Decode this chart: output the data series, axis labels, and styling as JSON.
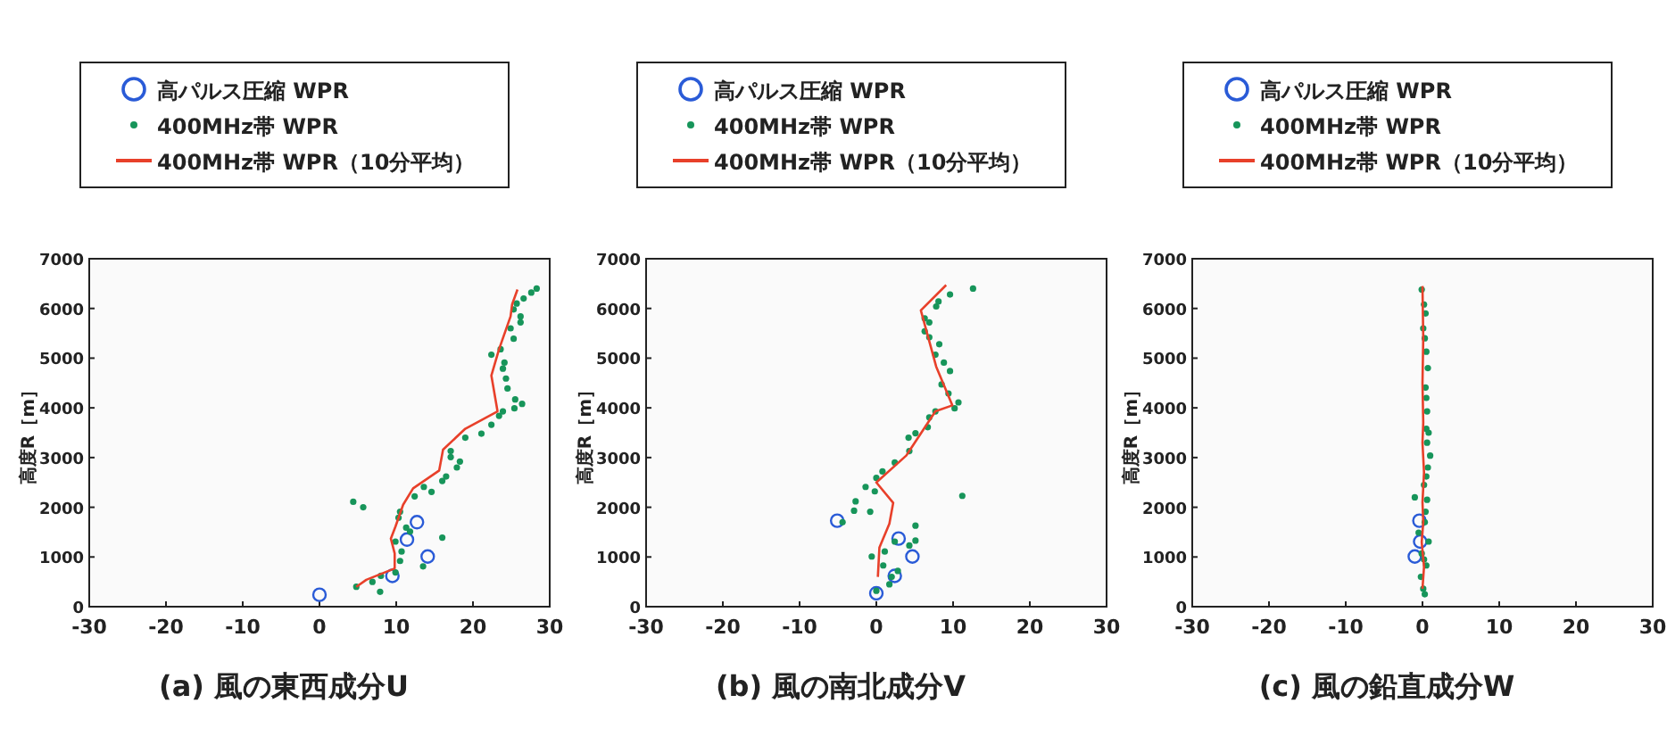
{
  "chart_data": [
    {
      "type": "scatter",
      "title": "(a) 風の東西成分U",
      "ylabel": "高度R［m］",
      "xlim": [
        -30,
        30
      ],
      "xticks": [
        -30,
        -20,
        -10,
        0,
        10,
        20,
        30
      ],
      "ylim": [
        0,
        7000
      ],
      "yticks": [
        0,
        1000,
        2000,
        3000,
        4000,
        5000,
        6000,
        7000
      ],
      "grid": false,
      "legend": "top",
      "series": [
        {
          "name": "高パルス圧縮 WPR",
          "type": "scatter",
          "marker": "circle",
          "color": "#2a5bd7",
          "x": [
            0,
            11.4,
            12.7,
            14.1,
            9.5
          ],
          "values": [
            240,
            1350,
            1700,
            1010,
            620
          ]
        },
        {
          "name": "400MHz帯 WPR",
          "type": "scatter",
          "marker": "circle",
          "color": "#17955a",
          "x": [
            4.8,
            6.9,
            8.0,
            7.9,
            9.9,
            10.5,
            10.7,
            9.9,
            11.3,
            11.8,
            10.3,
            10.5,
            16.0,
            13.5,
            4.4,
            5.7,
            12.4,
            14.6,
            13.6,
            16.5,
            16.0,
            17.9,
            18.3,
            17.1,
            17.1,
            19.0,
            21.1,
            22.4,
            23.4,
            23.9,
            25.4,
            26.4,
            25.5,
            24.5,
            24.3,
            23.9,
            24.1,
            23.6,
            22.4,
            25.3,
            24.9,
            26.2,
            26.2,
            25.3,
            25.7,
            26.6,
            27.6,
            28.3
          ],
          "values": [
            400,
            500,
            620,
            300,
            690,
            920,
            1110,
            1310,
            1590,
            1510,
            1790,
            1910,
            1390,
            810,
            2110,
            2000,
            2220,
            2310,
            2410,
            2620,
            2530,
            2800,
            2920,
            3130,
            3010,
            3400,
            3480,
            3660,
            3840,
            3930,
            3990,
            4080,
            4170,
            4390,
            4590,
            4790,
            4910,
            5180,
            5070,
            5390,
            5600,
            5720,
            5840,
            5980,
            6100,
            6200,
            6320,
            6400
          ]
        },
        {
          "name": "400MHz帯 WPR（10分平均）",
          "type": "line",
          "color": "#e8402a",
          "x": [
            4.8,
            6.1,
            9.8,
            9.8,
            9.3,
            9.9,
            10.9,
            12.2,
            15.6,
            16.1,
            19.0,
            23.2,
            22.4,
            23.4,
            24.9,
            25.1,
            25.8
          ],
          "values": [
            400,
            540,
            770,
            1070,
            1370,
            1610,
            2050,
            2380,
            2740,
            3160,
            3580,
            3930,
            4650,
            5180,
            5840,
            6080,
            6380
          ]
        }
      ]
    },
    {
      "type": "scatter",
      "title": "(b) 風の南北成分V",
      "ylabel": "高度R［m］",
      "xlim": [
        -30,
        30
      ],
      "xticks": [
        -30,
        -20,
        -10,
        0,
        10,
        20,
        30
      ],
      "ylim": [
        0,
        7000
      ],
      "yticks": [
        0,
        1000,
        2000,
        3000,
        4000,
        5000,
        6000,
        7000
      ],
      "grid": false,
      "legend": "top",
      "series": [
        {
          "name": "高パルス圧縮 WPR",
          "type": "scatter",
          "marker": "circle",
          "color": "#2a5bd7",
          "x": [
            0,
            -5.1,
            2.9,
            4.7,
            2.4
          ],
          "values": [
            270,
            1730,
            1370,
            1010,
            620
          ]
        },
        {
          "name": "400MHz帯 WPR",
          "type": "scatter",
          "marker": "circle",
          "color": "#17955a",
          "x": [
            0,
            1.7,
            2.8,
            0.9,
            2.0,
            -0.6,
            1.1,
            2.4,
            4.3,
            5.1,
            5.1,
            -4.4,
            -2.9,
            -0.8,
            -2.7,
            -1.4,
            -0.2,
            0,
            0.8,
            2.4,
            4.3,
            4.2,
            5.1,
            6.7,
            6.9,
            7.7,
            10.2,
            10.7,
            9.4,
            8.5,
            9.6,
            8.8,
            7.7,
            8.2,
            6.9,
            6.3,
            6.9,
            6.3,
            7.8,
            8.1,
            9.6,
            12.6,
            11.2
          ],
          "values": [
            320,
            450,
            720,
            830,
            600,
            1010,
            1110,
            1310,
            1230,
            1330,
            1630,
            1700,
            1930,
            1910,
            2120,
            2410,
            2320,
            2590,
            2720,
            2900,
            3130,
            3400,
            3490,
            3610,
            3810,
            3930,
            3990,
            4110,
            4290,
            4470,
            4740,
            4910,
            5070,
            5280,
            5420,
            5540,
            5720,
            5800,
            6040,
            6140,
            6280,
            6400,
            2230
          ]
        },
        {
          "name": "400MHz帯 WPR（10分平均）",
          "type": "line",
          "color": "#e8402a",
          "x": [
            0.2,
            0.4,
            1.7,
            2.2,
            0,
            3.9,
            7.7,
            9.9,
            7.8,
            5.8,
            9.1
          ],
          "values": [
            600,
            1190,
            1670,
            2090,
            2500,
            3040,
            3930,
            4050,
            4830,
            5960,
            6470
          ]
        }
      ]
    },
    {
      "type": "scatter",
      "title": "(c) 風の鉛直成分W",
      "ylabel": "高度R［m］",
      "xlim": [
        -30,
        30
      ],
      "xticks": [
        -30,
        -20,
        -10,
        0,
        10,
        20,
        30
      ],
      "ylim": [
        0,
        7000
      ],
      "yticks": [
        0,
        1000,
        2000,
        3000,
        4000,
        5000,
        6000,
        7000
      ],
      "grid": false,
      "legend": "top",
      "series": [
        {
          "name": "高パルス圧縮 WPR",
          "type": "scatter",
          "marker": "circle",
          "color": "#2a5bd7",
          "x": [
            -0.4,
            -1.0,
            -0.3
          ],
          "values": [
            1730,
            1010,
            1310
          ]
        },
        {
          "name": "400MHz帯 WPR",
          "type": "scatter",
          "marker": "circle",
          "color": "#17955a",
          "x": [
            0.3,
            0.1,
            -0.2,
            0.5,
            0.2,
            -0.1,
            0.8,
            -0.5,
            0.3,
            0.4,
            -1.0,
            0.6,
            0.2,
            0.5,
            0.7,
            1.0,
            0.6,
            0.5,
            0.8,
            0.6,
            0.5,
            0.4,
            0.7,
            0.5,
            0.3,
            0.1,
            0.4,
            0.2,
            -0.1
          ],
          "values": [
            250,
            360,
            600,
            830,
            950,
            1070,
            1310,
            1490,
            1700,
            1910,
            2200,
            2150,
            2450,
            2620,
            2800,
            3040,
            3300,
            3580,
            3500,
            3930,
            4200,
            4410,
            4800,
            5130,
            5400,
            5600,
            5900,
            6080,
            6380
          ]
        },
        {
          "name": "400MHz帯 WPR（10分平均）",
          "type": "line",
          "color": "#e8402a",
          "x": [
            0,
            0.2,
            -0.1,
            0.1,
            0,
            0.2,
            0,
            0.1,
            0,
            0.1,
            0
          ],
          "values": [
            360,
            800,
            1300,
            1700,
            2100,
            2700,
            3300,
            3700,
            4500,
            5400,
            6450
          ]
        }
      ]
    }
  ]
}
